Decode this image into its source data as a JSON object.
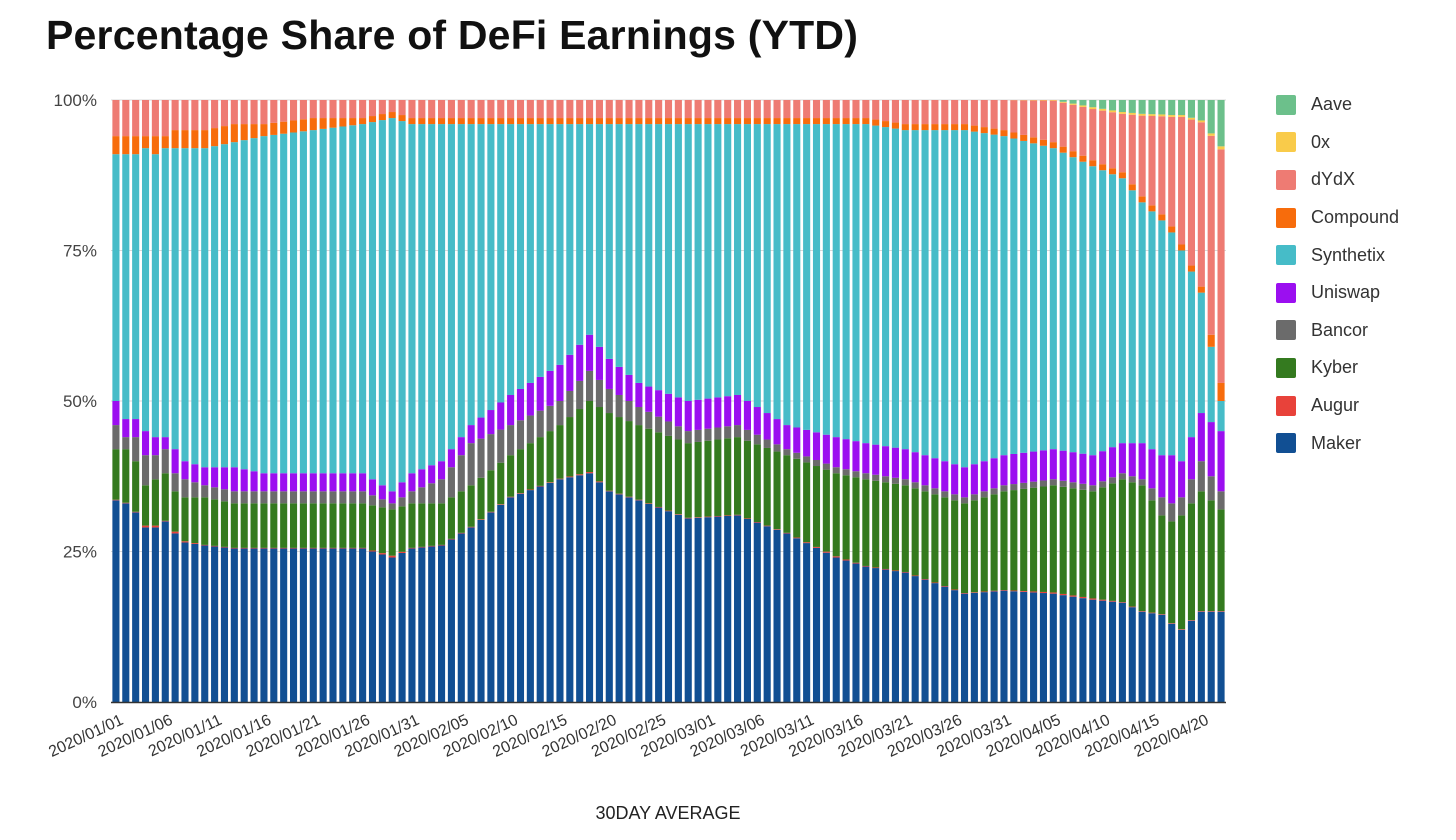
{
  "chart_data": {
    "type": "bar",
    "stacked": "percent",
    "title": "Percentage Share of DeFi Earnings (YTD)",
    "xlabel": "30DAY AVERAGE",
    "ylabel": "",
    "ylim": [
      0,
      100
    ],
    "yticks": [
      "0%",
      "25%",
      "50%",
      "75%",
      "100%"
    ],
    "grid": true,
    "legend_position": "right",
    "start_date": "2020/01/01",
    "num_days": 113,
    "xtick_labels": [
      "2020/01/01",
      "2020/01/06",
      "2020/01/11",
      "2020/01/16",
      "2020/01/21",
      "2020/01/26",
      "2020/01/31",
      "2020/02/05",
      "2020/02/10",
      "2020/02/15",
      "2020/02/20",
      "2020/02/25",
      "2020/03/01",
      "2020/03/06",
      "2020/03/11",
      "2020/03/16",
      "2020/03/21",
      "2020/03/26",
      "2020/03/31",
      "2020/04/05",
      "2020/04/10",
      "2020/04/15",
      "2020/04/20"
    ],
    "legend_order": [
      "Aave",
      "0x",
      "dYdX",
      "Compound",
      "Synthetix",
      "Uniswap",
      "Bancor",
      "Kyber",
      "Augur",
      "Maker"
    ],
    "stack_order_bottom_to_top": [
      "Maker",
      "Augur",
      "Kyber",
      "Bancor",
      "Uniswap",
      "Synthetix",
      "Compound",
      "dYdX",
      "0x",
      "Aave"
    ],
    "anchors_note": "cumulative stack tops in percent at day indices; series values are differences between consecutive tops",
    "anchors": {
      "day": [
        0,
        1,
        2,
        3,
        4,
        5,
        6,
        7,
        9,
        12,
        15,
        20,
        25,
        28,
        30,
        33,
        36,
        40,
        45,
        48,
        50,
        53,
        58,
        63,
        68,
        73,
        76,
        80,
        86,
        90,
        95,
        99,
        102,
        104,
        106,
        107,
        108,
        110,
        112
      ],
      "Maker": [
        33.5,
        33,
        31.5,
        29,
        29,
        30,
        28,
        26.5,
        26,
        25.5,
        25.5,
        25.5,
        25.5,
        24,
        25.5,
        26,
        29,
        34,
        37,
        38,
        35,
        33.5,
        30.5,
        31,
        28,
        24,
        22.5,
        21.5,
        18,
        18.5,
        18,
        17,
        16.5,
        15,
        14.5,
        13,
        12,
        15,
        15
      ],
      "Augur": [
        33.6,
        33.1,
        31.6,
        29.3,
        29.3,
        30.1,
        28.3,
        26.7,
        26.1,
        25.6,
        25.6,
        25.6,
        25.6,
        24.3,
        25.6,
        26.1,
        29.1,
        34.1,
        37.1,
        38.2,
        35.1,
        33.6,
        30.6,
        31.1,
        28.1,
        24.2,
        22.6,
        21.6,
        18.1,
        18.6,
        18.2,
        17.2,
        16.6,
        15.1,
        14.6,
        13.1,
        12.1,
        15.1,
        15.1
      ],
      "Kyber": [
        42,
        42,
        40,
        36,
        37,
        38,
        35,
        34,
        34,
        33,
        33,
        33,
        33,
        32,
        33,
        33,
        36,
        41,
        46,
        50,
        48,
        46,
        43,
        44,
        41,
        38,
        37,
        36,
        33,
        35,
        36,
        35,
        37,
        36,
        31,
        30,
        31,
        35,
        32
      ],
      "Bancor": [
        46,
        44,
        44,
        41,
        41,
        42,
        38,
        37,
        36,
        35,
        35,
        35,
        35,
        33,
        35,
        37,
        43,
        46,
        50,
        55,
        52,
        49,
        45,
        46,
        42,
        39,
        38,
        37,
        34,
        36,
        37,
        36,
        38,
        37,
        34,
        33,
        34,
        40,
        35
      ],
      "Uniswap": [
        50,
        47,
        47,
        45,
        44,
        44,
        42,
        40,
        39,
        39,
        38,
        38,
        38,
        35,
        38,
        40,
        46,
        51,
        56,
        61,
        57,
        53,
        50,
        51,
        46,
        44,
        43,
        42,
        39,
        41,
        42,
        41,
        43,
        43,
        41,
        41,
        40,
        48,
        45
      ],
      "Synthetix": [
        91,
        91,
        91,
        92,
        91,
        92,
        92,
        92,
        92,
        93,
        94,
        95,
        96,
        97,
        96,
        96,
        96,
        96,
        96,
        96,
        96,
        96,
        96,
        96,
        96,
        96,
        96,
        95,
        95,
        94,
        92,
        89,
        87,
        83,
        80,
        78,
        75,
        68,
        50
      ],
      "Compound": [
        94,
        94,
        94,
        94,
        94,
        94,
        95,
        95,
        95,
        96,
        96,
        97,
        97,
        98,
        97,
        97,
        97,
        97,
        97,
        97,
        97,
        97,
        97,
        97,
        97,
        97,
        97,
        96,
        96,
        95,
        93,
        90,
        88,
        84,
        81,
        79,
        76,
        69,
        53
      ],
      "dYdX": [
        100,
        100,
        100,
        100,
        100,
        100,
        100,
        100,
        100,
        100,
        100,
        100,
        100,
        100,
        100,
        100,
        100,
        100,
        100,
        100,
        100,
        100,
        100,
        100,
        100,
        100,
        100,
        100,
        100,
        100,
        99.9,
        98.5,
        97.7,
        97.4,
        97.3,
        97.2,
        97.2,
        96.3,
        91.8
      ],
      "0x": [
        100,
        100,
        100,
        100,
        100,
        100,
        100,
        100,
        100,
        100,
        100,
        100,
        100,
        100,
        100,
        100,
        100,
        100,
        100,
        100,
        100,
        100,
        100,
        100,
        100,
        100,
        100,
        100,
        100,
        100,
        100,
        98.8,
        98.0,
        97.7,
        97.6,
        97.5,
        97.5,
        96.6,
        92.3
      ],
      "Aave": [
        100,
        100,
        100,
        100,
        100,
        100,
        100,
        100,
        100,
        100,
        100,
        100,
        100,
        100,
        100,
        100,
        100,
        100,
        100,
        100,
        100,
        100,
        100,
        100,
        100,
        100,
        100,
        100,
        100,
        100,
        100,
        100,
        100,
        100,
        100,
        100,
        100,
        100,
        100
      ]
    },
    "series_colors": {
      "Aave": "#6cc08b",
      "0x": "#f9cb4a",
      "dYdX": "#ee7b73",
      "Compound": "#f76c0c",
      "Synthetix": "#46bcc8",
      "Uniswap": "#9b0ff0",
      "Bancor": "#6b6b6b",
      "Kyber": "#347a1f",
      "Augur": "#e8423a",
      "Maker": "#114f93"
    }
  }
}
